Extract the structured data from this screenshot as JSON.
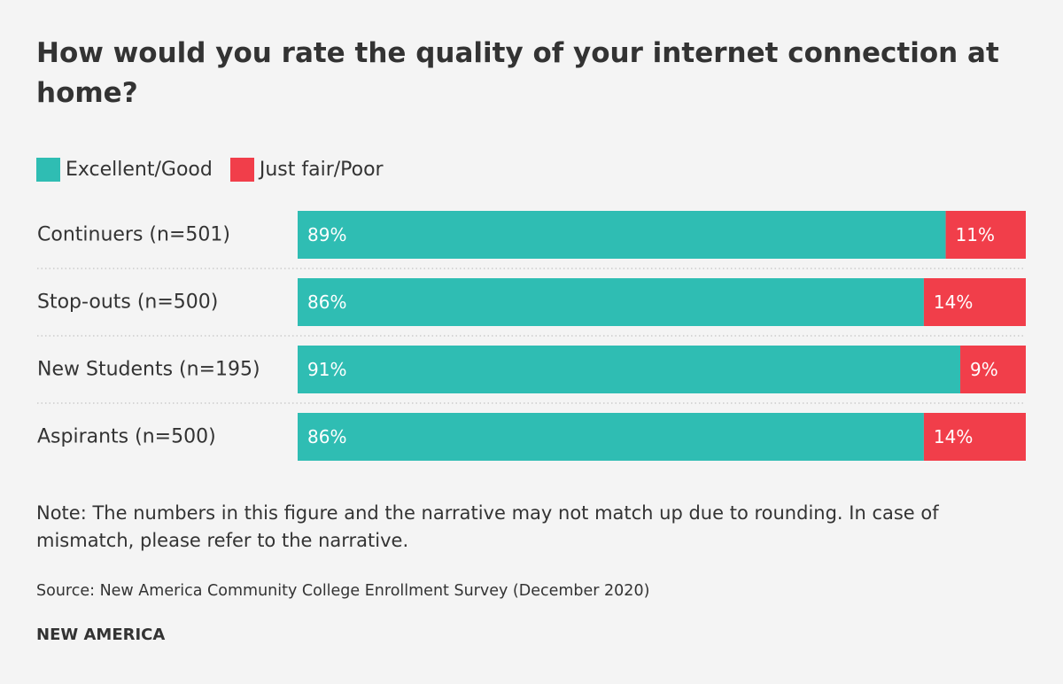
{
  "title": "How would you rate the quality of your internet connection at home?",
  "colors": {
    "excellent_good": "#2fbdb3",
    "fair_poor": "#f13e4a",
    "separator": "#cccccc",
    "background": "#f4f4f4"
  },
  "chart_data": {
    "type": "bar",
    "orientation": "horizontal",
    "stacked": true,
    "title": "How would you rate the quality of your internet connection at home?",
    "categories": [
      "Continuers (n=501)",
      "Stop-outs (n=500)",
      "New Students (n=195)",
      "Aspirants (n=500)"
    ],
    "series": [
      {
        "name": "Excellent/Good",
        "values": [
          89,
          86,
          91,
          86
        ],
        "labels": [
          "89%",
          "86%",
          "91%",
          "86%"
        ]
      },
      {
        "name": "Just fair/Poor",
        "values": [
          11,
          14,
          9,
          14
        ],
        "labels": [
          "11%",
          "14%",
          "9%",
          "14%"
        ]
      }
    ],
    "xlim": [
      0,
      100
    ],
    "legend_position": "top-left"
  },
  "note": "Note: The numbers in this figure and the narrative may not match up due to rounding. In case of mismatch, please refer to the narrative.",
  "source": "Source: New America Community College Enrollment Survey (December 2020)",
  "brand": "NEW AMERICA"
}
